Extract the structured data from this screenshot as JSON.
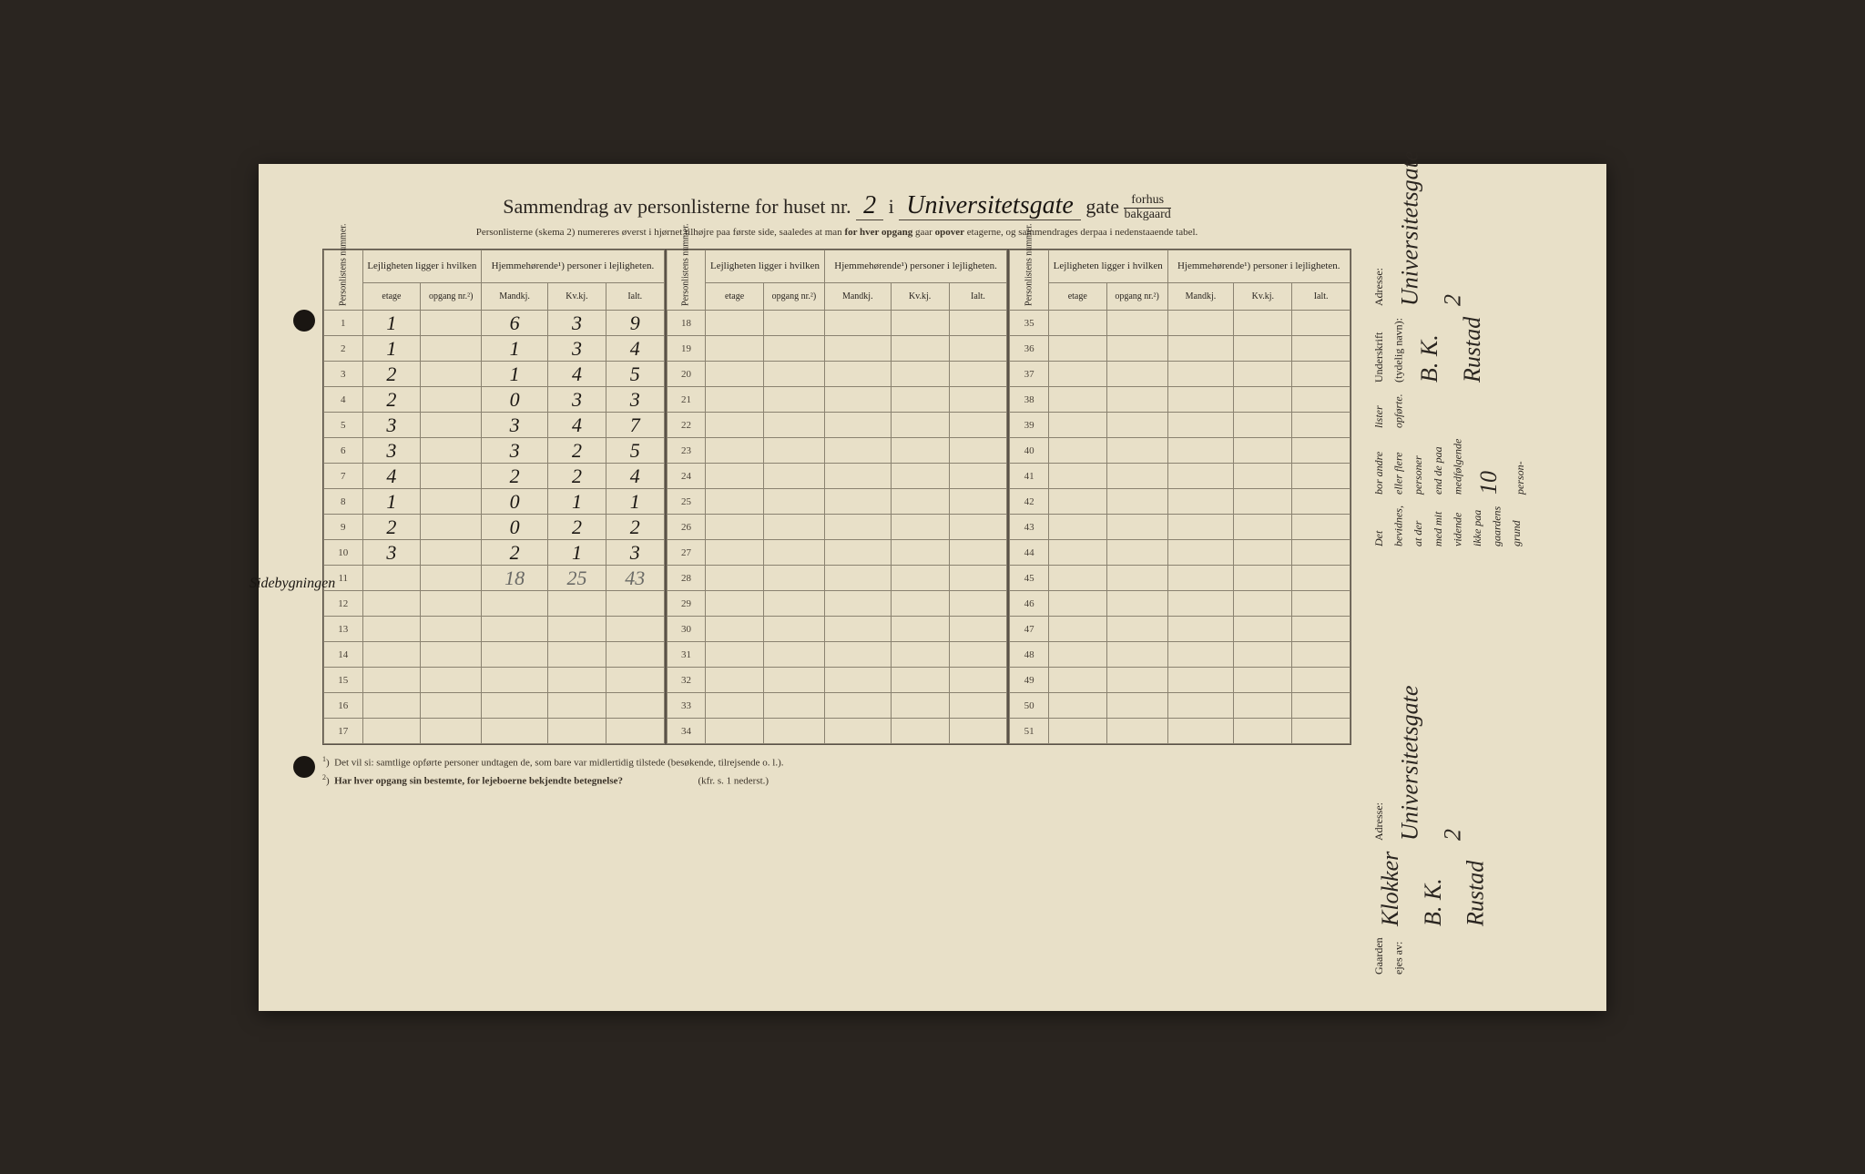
{
  "title": {
    "prefix": "Sammendrag av personlisterne for huset nr.",
    "house_nr": "2",
    "middle": "i",
    "street": "Universitetsgate",
    "suffix": "gate",
    "fraction_top": "forhus",
    "fraction_bottom": "bakgaard"
  },
  "subtitle": {
    "pre": "Personlisterne (skema 2) numereres øverst i hjørnet tilhøjre paa første side, saaledes at man ",
    "b1": "for hver opgang",
    "mid": " gaar ",
    "b2": "opover",
    "post": " etagerne, og sammendrages derpaa i nedenstaaende tabel."
  },
  "headers": {
    "personlistens": "Personlistens nummer.",
    "lejligheten": "Lejligheten ligger i hvilken",
    "hjemmehorende": "Hjemmehørende¹) personer i lejligheten.",
    "etage": "etage",
    "opgang": "opgang nr.²)",
    "mandkj": "Mandkj.",
    "kvkj": "Kv.kj.",
    "ialt": "Ialt."
  },
  "block1_start": 1,
  "block2_start": 18,
  "block3_start": 35,
  "block1_rows": [
    {
      "n": "1",
      "etage": "1",
      "mk": "6",
      "kk": "3",
      "ialt": "9"
    },
    {
      "n": "2",
      "etage": "1",
      "mk": "1",
      "kk": "3",
      "ialt": "4"
    },
    {
      "n": "3",
      "etage": "2",
      "mk": "1",
      "kk": "4",
      "ialt": "5"
    },
    {
      "n": "4",
      "etage": "2",
      "mk": "0",
      "kk": "3",
      "ialt": "3"
    },
    {
      "n": "5",
      "etage": "3",
      "mk": "3",
      "kk": "4",
      "ialt": "7"
    },
    {
      "n": "6",
      "etage": "3",
      "mk": "3",
      "kk": "2",
      "ialt": "5"
    },
    {
      "n": "7",
      "etage": "4",
      "mk": "2",
      "kk": "2",
      "ialt": "4"
    },
    {
      "n": "8",
      "etage": "1",
      "mk": "0",
      "kk": "1",
      "ialt": "1"
    },
    {
      "n": "9",
      "etage": "2",
      "mk": "0",
      "kk": "2",
      "ialt": "2"
    },
    {
      "n": "10",
      "etage": "3",
      "mk": "2",
      "kk": "1",
      "ialt": "3"
    },
    {
      "n": "11",
      "etage": "",
      "mk": "18",
      "kk": "25",
      "ialt": "43",
      "pencil": true
    },
    {
      "n": "12"
    },
    {
      "n": "13"
    },
    {
      "n": "14"
    },
    {
      "n": "15"
    },
    {
      "n": "16"
    },
    {
      "n": "17"
    }
  ],
  "margin_note": "Sidebygningen",
  "footnotes": {
    "f1": "Det vil si: samtlige opførte personer undtagen de, som bare var midlertidig tilstede (besøkende, tilrejsende o. l.).",
    "f2_pre": "Har hver opgang sin bestemte, for lejeboerne bekjendte betegnelse?",
    "f2_post": "(kfr. s. 1 nederst.)"
  },
  "right_top": {
    "l1": "Det bevidnes, at der med mit vidende ikke paa gaardens grund",
    "l2": "bor andre eller flere personer end de paa medfølgende",
    "l2_num": "10",
    "l2_suf": "person-",
    "l3": "lister opførte.",
    "underskrift": "Underskrift (tydelig navn):",
    "sig": "B. K. Rustad",
    "adresse_label": "Adresse:",
    "adresse": "Universitetsgate 2"
  },
  "right_bottom": {
    "gaarden": "Gaarden ejes av:",
    "owner": "Klokker B. K. Rustad",
    "adresse_label": "Adresse:",
    "adresse": "Universitetsgate 2"
  },
  "colors": {
    "paper": "#e8e0c8",
    "ink": "#2a2520",
    "line": "#5a5248",
    "hw": "#1a1612",
    "pencil": "#6a6a66"
  }
}
